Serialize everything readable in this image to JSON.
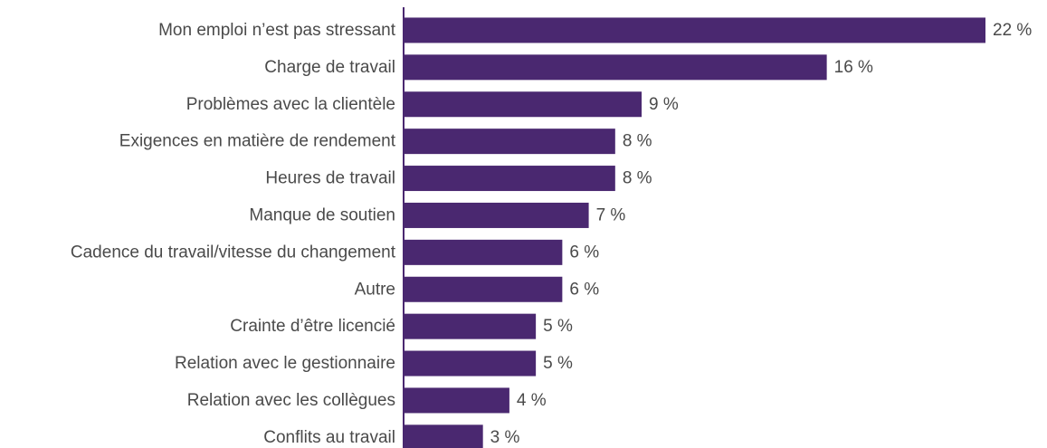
{
  "chart_data": {
    "type": "bar",
    "orientation": "horizontal",
    "categories": [
      "Mon emploi n’est pas stressant",
      "Charge de travail",
      "Problèmes avec la clientèle",
      "Exigences en matière de rendement",
      "Heures de travail",
      "Manque de soutien",
      "Cadence du travail/vitesse du changement",
      "Autre",
      "Crainte d’être licencié",
      "Relation avec le gestionnaire",
      "Relation avec les collègues",
      "Conflits au travail"
    ],
    "values": [
      22,
      16,
      9,
      8,
      8,
      7,
      6,
      6,
      5,
      5,
      4,
      3
    ],
    "value_labels": [
      "22 %",
      "16 %",
      "9 %",
      "8 %",
      "8 %",
      "7 %",
      "6 %",
      "6 %",
      "5 %",
      "5 %",
      "4 %",
      "3 %"
    ],
    "title": "",
    "xlabel": "",
    "ylabel": "",
    "xlim": [
      0,
      22
    ],
    "grid": false,
    "legend": "none"
  },
  "colors": {
    "bar": "#4a2870",
    "axis": "#4a2870",
    "text": "#4a4a4a"
  }
}
